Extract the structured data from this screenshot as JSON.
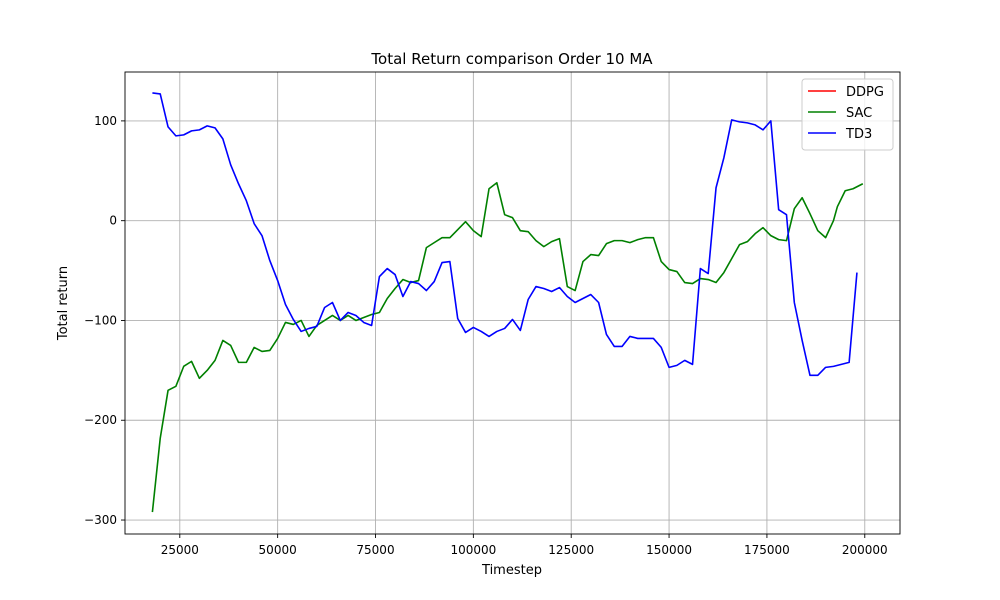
{
  "chart_data": {
    "type": "line",
    "title": "Total Return comparison Order 10 MA",
    "xlabel": "Timestep",
    "ylabel": "Total return",
    "xlim": [
      11000,
      209000
    ],
    "ylim": [
      -314,
      149
    ],
    "xticks": [
      25000,
      50000,
      75000,
      100000,
      125000,
      150000,
      175000,
      200000
    ],
    "xtick_labels": [
      "25000",
      "50000",
      "75000",
      "100000",
      "125000",
      "150000",
      "175000",
      "200000"
    ],
    "yticks": [
      -300,
      -200,
      -100,
      0,
      100
    ],
    "ytick_labels": [
      "−300",
      "−200",
      "−100",
      "0",
      "100"
    ],
    "grid": true,
    "legend_position": "top-right",
    "series": [
      {
        "name": "DDPG",
        "color": "#ff0000",
        "points": []
      },
      {
        "name": "SAC",
        "color": "#008000",
        "points": [
          [
            18000,
            -292
          ],
          [
            20000,
            -218
          ],
          [
            22000,
            -170
          ],
          [
            24000,
            -166
          ],
          [
            26000,
            -146
          ],
          [
            28000,
            -141
          ],
          [
            30000,
            -158
          ],
          [
            32000,
            -150
          ],
          [
            34000,
            -140
          ],
          [
            36000,
            -120
          ],
          [
            38000,
            -125
          ],
          [
            40000,
            -142
          ],
          [
            42000,
            -142
          ],
          [
            44000,
            -127
          ],
          [
            46000,
            -131
          ],
          [
            48000,
            -130
          ],
          [
            50000,
            -118
          ],
          [
            52000,
            -102
          ],
          [
            54000,
            -104
          ],
          [
            56000,
            -100
          ],
          [
            58000,
            -116
          ],
          [
            60000,
            -105
          ],
          [
            62000,
            -100
          ],
          [
            64000,
            -95
          ],
          [
            66000,
            -100
          ],
          [
            68000,
            -95
          ],
          [
            70000,
            -100
          ],
          [
            72000,
            -97
          ],
          [
            74000,
            -94
          ],
          [
            76000,
            -92
          ],
          [
            78000,
            -78
          ],
          [
            80000,
            -68
          ],
          [
            82000,
            -59
          ],
          [
            84000,
            -62
          ],
          [
            86000,
            -60
          ],
          [
            88000,
            -27
          ],
          [
            90000,
            -22
          ],
          [
            92000,
            -17
          ],
          [
            94000,
            -17
          ],
          [
            96000,
            -9
          ],
          [
            98000,
            -1
          ],
          [
            100000,
            -10
          ],
          [
            102000,
            -16
          ],
          [
            104000,
            32
          ],
          [
            106000,
            38
          ],
          [
            108000,
            6
          ],
          [
            110000,
            3
          ],
          [
            112000,
            -10
          ],
          [
            114000,
            -11
          ],
          [
            116000,
            -20
          ],
          [
            118000,
            -26
          ],
          [
            120000,
            -21
          ],
          [
            122000,
            -18
          ],
          [
            124000,
            -66
          ],
          [
            126000,
            -70
          ],
          [
            128000,
            -41
          ],
          [
            130000,
            -34
          ],
          [
            132000,
            -35
          ],
          [
            134000,
            -23
          ],
          [
            136000,
            -20
          ],
          [
            138000,
            -20
          ],
          [
            140000,
            -22
          ],
          [
            142000,
            -19
          ],
          [
            144000,
            -17
          ],
          [
            146000,
            -17
          ],
          [
            148000,
            -41
          ],
          [
            150000,
            -49
          ],
          [
            152000,
            -51
          ],
          [
            154000,
            -62
          ],
          [
            156000,
            -63
          ],
          [
            158000,
            -58
          ],
          [
            160000,
            -59
          ],
          [
            162000,
            -62
          ],
          [
            164000,
            -52
          ],
          [
            166000,
            -38
          ],
          [
            168000,
            -24
          ],
          [
            170000,
            -21
          ],
          [
            172000,
            -13
          ],
          [
            174000,
            -7
          ],
          [
            176000,
            -15
          ],
          [
            178000,
            -19
          ],
          [
            180000,
            -20
          ],
          [
            182000,
            12
          ],
          [
            184000,
            23
          ],
          [
            186000,
            7
          ],
          [
            188000,
            -10
          ],
          [
            190000,
            -17
          ],
          [
            192000,
            0
          ],
          [
            193000,
            14
          ],
          [
            195000,
            30
          ],
          [
            197000,
            32
          ],
          [
            199500,
            37
          ]
        ]
      },
      {
        "name": "TD3",
        "color": "#0000ff",
        "points": [
          [
            18000,
            128
          ],
          [
            20000,
            127
          ],
          [
            22000,
            94
          ],
          [
            24000,
            85
          ],
          [
            26000,
            86
          ],
          [
            28000,
            90
          ],
          [
            30000,
            91
          ],
          [
            32000,
            95
          ],
          [
            34000,
            93
          ],
          [
            36000,
            82
          ],
          [
            38000,
            56
          ],
          [
            40000,
            37
          ],
          [
            42000,
            20
          ],
          [
            44000,
            -3
          ],
          [
            46000,
            -15
          ],
          [
            48000,
            -40
          ],
          [
            50000,
            -60
          ],
          [
            52000,
            -84
          ],
          [
            54000,
            -99
          ],
          [
            56000,
            -111
          ],
          [
            58000,
            -108
          ],
          [
            60000,
            -106
          ],
          [
            62000,
            -87
          ],
          [
            64000,
            -82
          ],
          [
            66000,
            -100
          ],
          [
            68000,
            -92
          ],
          [
            70000,
            -95
          ],
          [
            72000,
            -102
          ],
          [
            74000,
            -105
          ],
          [
            76000,
            -56
          ],
          [
            78000,
            -48
          ],
          [
            80000,
            -54
          ],
          [
            82000,
            -76
          ],
          [
            84000,
            -61
          ],
          [
            86000,
            -63
          ],
          [
            88000,
            -70
          ],
          [
            90000,
            -61
          ],
          [
            92000,
            -42
          ],
          [
            94000,
            -41
          ],
          [
            96000,
            -98
          ],
          [
            98000,
            -112
          ],
          [
            100000,
            -107
          ],
          [
            102000,
            -111
          ],
          [
            104000,
            -116
          ],
          [
            106000,
            -111
          ],
          [
            108000,
            -108
          ],
          [
            110000,
            -99
          ],
          [
            112000,
            -110
          ],
          [
            114000,
            -79
          ],
          [
            116000,
            -66
          ],
          [
            118000,
            -68
          ],
          [
            120000,
            -71
          ],
          [
            122000,
            -67
          ],
          [
            124000,
            -76
          ],
          [
            126000,
            -82
          ],
          [
            128000,
            -78
          ],
          [
            130000,
            -74
          ],
          [
            132000,
            -82
          ],
          [
            134000,
            -114
          ],
          [
            136000,
            -126
          ],
          [
            138000,
            -126
          ],
          [
            140000,
            -116
          ],
          [
            142000,
            -118
          ],
          [
            144000,
            -118
          ],
          [
            146000,
            -118
          ],
          [
            148000,
            -127
          ],
          [
            150000,
            -147
          ],
          [
            152000,
            -145
          ],
          [
            154000,
            -140
          ],
          [
            156000,
            -144
          ],
          [
            158000,
            -48
          ],
          [
            160000,
            -53
          ],
          [
            162000,
            33
          ],
          [
            164000,
            63
          ],
          [
            166000,
            101
          ],
          [
            168000,
            99
          ],
          [
            170000,
            98
          ],
          [
            172000,
            96
          ],
          [
            174000,
            91
          ],
          [
            176000,
            100
          ],
          [
            178000,
            11
          ],
          [
            180000,
            6
          ],
          [
            182000,
            -82
          ],
          [
            184000,
            -120
          ],
          [
            186000,
            -155
          ],
          [
            188000,
            -155
          ],
          [
            190000,
            -147
          ],
          [
            192000,
            -146
          ],
          [
            196000,
            -142
          ],
          [
            198000,
            -52
          ]
        ]
      }
    ]
  }
}
